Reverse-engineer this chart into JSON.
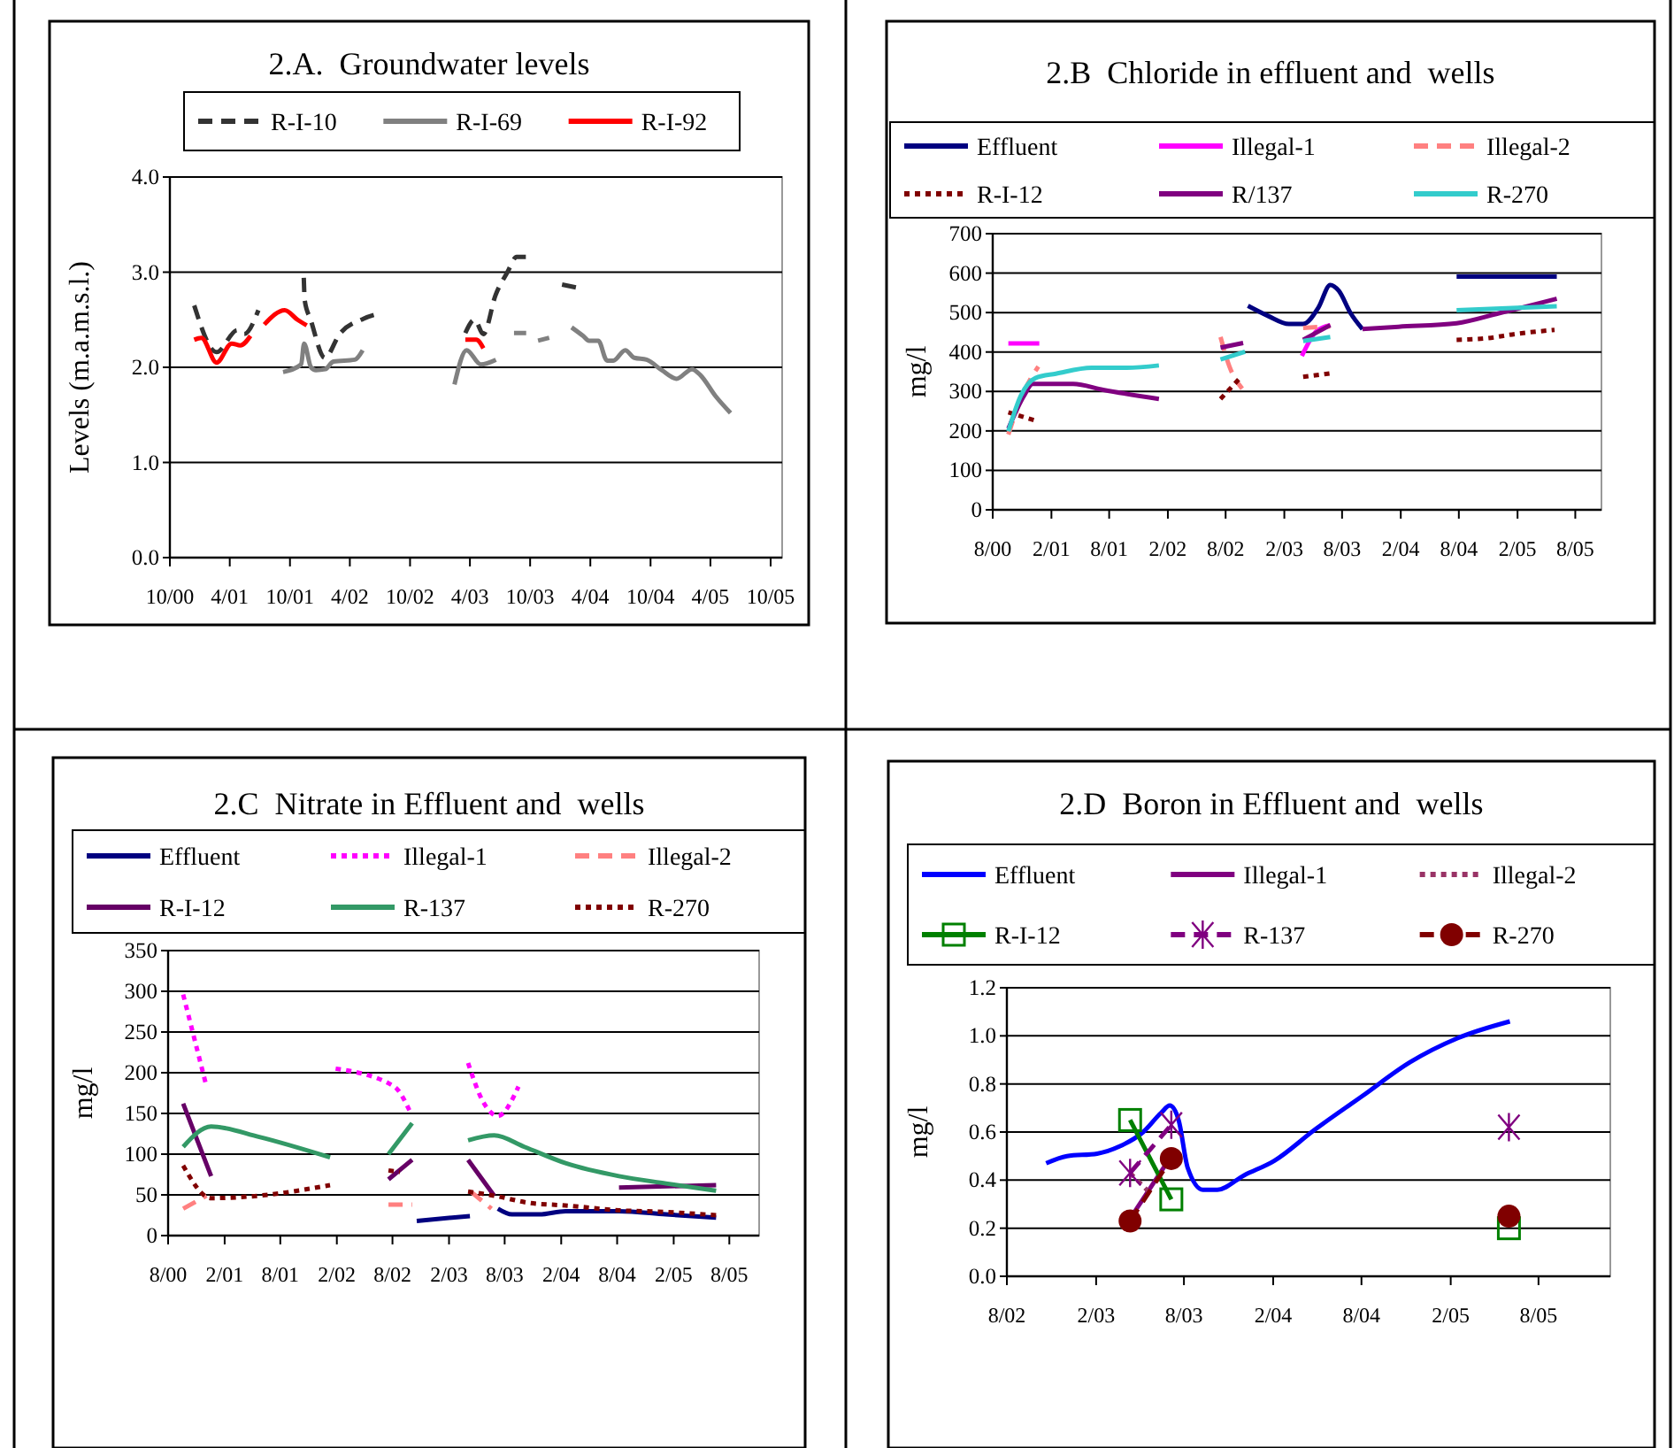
{
  "chart_data": [
    {
      "type": "line",
      "title": "2.A.  Groundwater levels",
      "ylabel": "Levels (m.a.m.s.l.)",
      "legend": "top",
      "grid": "y",
      "xlim": [
        "2000-10",
        "2005-11-05"
      ],
      "xticks": [
        {
          "value": "2000-10",
          "label": "10/00"
        },
        {
          "value": "2001-04",
          "label": "4/01"
        },
        {
          "value": "2001-10",
          "label": "10/01"
        },
        {
          "value": "2002-04",
          "label": "4/02"
        },
        {
          "value": "2002-10",
          "label": "10/02"
        },
        {
          "value": "2003-04",
          "label": "4/03"
        },
        {
          "value": "2003-10",
          "label": "10/03"
        },
        {
          "value": "2004-04",
          "label": "4/04"
        },
        {
          "value": "2004-10",
          "label": "10/04"
        },
        {
          "value": "2005-04",
          "label": "4/05"
        },
        {
          "value": "2005-10",
          "label": "10/05"
        }
      ],
      "ylim": [
        0,
        4
      ],
      "yticks": [
        {
          "value": 0,
          "label": "0.0"
        },
        {
          "value": 1,
          "label": "1.0"
        },
        {
          "value": 2,
          "label": "2.0"
        },
        {
          "value": 3,
          "label": "3.0"
        },
        {
          "value": 4,
          "label": "4.0"
        }
      ],
      "series": [
        {
          "name": "R-I-10",
          "color": "#333333",
          "line_style": "dashed",
          "x": [
            "2000-12-14",
            "2001-02-20",
            "2001-04-24",
            "2001-05-15",
            "2001-06-27",
            "2001-08-01",
            "2001-11-12",
            "2001-11-15",
            "2001-12-03",
            "2002-01-15",
            "2002-03-01",
            "2002-05-12",
            "2002-07-06",
            "2002-10-01",
            "2003-03-18",
            "2003-04-15",
            "2003-05-12",
            "2003-06-18",
            "2003-07-24",
            "2003-08-21",
            "2003-09-18",
            "2003-11-01",
            "2004-01-06",
            "2004-03-01"
          ],
          "values": [
            2.65,
            2.16,
            2.39,
            2.35,
            2.6,
            null,
            2.94,
            2.7,
            2.5,
            2.1,
            2.35,
            2.51,
            2.57,
            null,
            2.36,
            2.5,
            2.35,
            2.76,
            3.0,
            3.16,
            3.16,
            null,
            2.87,
            2.83
          ]
        },
        {
          "name": "R-I-69",
          "color": "#808080",
          "line_style": "solid",
          "x": [
            "2001-09-10",
            "2001-11-04",
            "2001-11-13",
            "2001-12-04",
            "2001-12-19",
            "2002-01-16",
            "2002-02-10",
            "2002-04-16",
            "2002-05-10",
            "2002-10-01",
            "2003-02-13",
            "2003-03-22",
            "2003-05-04",
            "2003-06-19",
            "2003-07-15",
            "2003-08-13",
            "2003-09-19",
            "2003-10-10",
            "2003-10-25",
            "2003-11-28",
            "2004-01-01",
            "2004-02-04",
            "2004-03-10",
            "2004-03-28",
            "2004-04-25",
            "2004-05-22",
            "2004-06-10",
            "2004-07-16",
            "2004-08-13",
            "2004-09-19",
            "2004-11-04",
            "2004-12-19",
            "2005-02-04",
            "2005-03-01",
            "2005-04-16",
            "2005-06-01"
          ],
          "values": [
            1.95,
            2.03,
            2.25,
            2.0,
            1.97,
            1.98,
            2.06,
            2.08,
            2.18,
            null,
            1.82,
            2.18,
            2.03,
            2.08,
            null,
            2.36,
            2.36,
            null,
            2.28,
            2.31,
            null,
            2.42,
            2.33,
            2.28,
            2.28,
            2.07,
            2.07,
            2.18,
            2.1,
            2.08,
            1.97,
            1.88,
            1.98,
            1.92,
            1.7,
            1.52
          ]
        },
        {
          "name": "R-I-92",
          "color": "#ff0000",
          "line_style": "solid",
          "x": [
            "2000-12-14",
            "2001-01-05",
            "2001-02-20",
            "2001-04-07",
            "2001-05-03",
            "2001-06-03",
            "2001-06-20",
            "2001-07-15",
            "2001-09-15",
            "2001-10-24",
            "2001-11-21",
            "2002-06-01",
            "2003-03-18",
            "2003-04-20",
            "2003-05-12"
          ],
          "values": [
            2.29,
            2.31,
            2.05,
            2.25,
            2.23,
            2.33,
            null,
            2.45,
            2.6,
            2.5,
            2.44,
            null,
            2.29,
            2.29,
            2.2
          ]
        }
      ]
    },
    {
      "type": "line",
      "title": "2.B  Chloride in effluent and  wells",
      "ylabel": "mg/l",
      "legend": "top",
      "grid": "y",
      "xlim": [
        "2000-08",
        "2005-10-22"
      ],
      "xticks": [
        {
          "value": "2000-08",
          "label": "8/00"
        },
        {
          "value": "2001-02",
          "label": "2/01"
        },
        {
          "value": "2001-08",
          "label": "8/01"
        },
        {
          "value": "2002-02",
          "label": "2/02"
        },
        {
          "value": "2002-08",
          "label": "8/02"
        },
        {
          "value": "2003-02",
          "label": "2/03"
        },
        {
          "value": "2003-08",
          "label": "8/03"
        },
        {
          "value": "2004-02",
          "label": "2/04"
        },
        {
          "value": "2004-08",
          "label": "8/04"
        },
        {
          "value": "2005-02",
          "label": "2/05"
        },
        {
          "value": "2005-08",
          "label": "8/05"
        }
      ],
      "ylim": [
        0,
        700
      ],
      "yticks": [
        0,
        100,
        200,
        300,
        400,
        500,
        600,
        700
      ],
      "series": [
        {
          "name": "Effluent",
          "color": "#000080",
          "line_style": "solid",
          "x": [
            "2002-10-10",
            "2002-12-13",
            "2003-02-15",
            "2003-04-01",
            "2003-05-19",
            "2003-06-25",
            "2003-07-22",
            "2003-08-28",
            "2003-10-04",
            "2004-03-01",
            "2004-07-25",
            "2005-06-04"
          ],
          "values": [
            517,
            491,
            471,
            471,
            513,
            570,
            555,
            498,
            458,
            null,
            591,
            591
          ]
        },
        {
          "name": "Illegal-1",
          "color": "#ff00ff",
          "line_style": "solid",
          "x": [
            "2000-09-19",
            "2000-12-25",
            "2002-01-01",
            "2003-03-28",
            "2003-05-13",
            "2003-06-25"
          ],
          "values": [
            422,
            422,
            null,
            390,
            453,
            468
          ]
        },
        {
          "name": "Illegal-2",
          "color": "#ff8080",
          "line_style": "dashed",
          "x": [
            "2000-09-19",
            "2000-11-01",
            "2000-12-22",
            "2002-01-01",
            "2002-07-16",
            "2002-08-13",
            "2002-09-22",
            "2003-01-01",
            "2003-04-01",
            "2003-06-25"
          ],
          "values": [
            191,
            289,
            363,
            null,
            438,
            363,
            307,
            null,
            461,
            465
          ]
        },
        {
          "name": "R-I-12",
          "color": "#800000",
          "line_style": "dotted",
          "x": [
            "2000-09-19",
            "2000-12-22",
            "2002-01-01",
            "2002-07-16",
            "2002-09-15",
            "2003-01-01",
            "2003-04-01",
            "2003-06-25",
            "2004-01-01",
            "2004-07-25",
            "2004-10-28",
            "2005-01-28",
            "2005-05-28"
          ],
          "values": [
            247,
            224,
            null,
            281,
            334,
            null,
            337,
            346,
            null,
            431,
            435,
            446,
            456
          ]
        },
        {
          "name": "R/137",
          "color": "#800080",
          "line_style": "solid",
          "x": [
            "2000-09-19",
            "2000-11-07",
            "2000-12-04",
            "2001-04-10",
            "2001-07-13",
            "2002-01-04",
            "2002-04-01",
            "2002-07-16",
            "2002-09-25",
            "2003-01-01",
            "2003-04-01",
            "2003-06-25",
            "2003-08-01",
            "2003-10-04",
            "2004-01-25",
            "2004-07-25",
            "2004-12-04",
            "2005-06-04"
          ],
          "values": [
            206,
            289,
            319,
            319,
            304,
            281,
            null,
            411,
            423,
            null,
            431,
            468,
            null,
            458,
            464,
            473,
            498,
            535
          ]
        },
        {
          "name": "R-270",
          "color": "#33cccc",
          "line_style": "solid",
          "x": [
            "2000-09-19",
            "2000-10-28",
            "2000-12-13",
            "2001-02-15",
            "2001-06-07",
            "2001-09-25",
            "2002-01-04",
            "2002-04-01",
            "2002-07-16",
            "2002-10-01",
            "2003-01-01",
            "2003-04-01",
            "2003-06-25",
            "2004-01-01",
            "2004-07-25",
            "2005-06-04"
          ],
          "values": [
            199,
            289,
            334,
            345,
            360,
            360,
            366,
            null,
            381,
            401,
            null,
            428,
            438,
            null,
            506,
            516
          ]
        }
      ]
    },
    {
      "type": "line",
      "title": "2.C  Nitrate in Effluent and  wells",
      "ylabel": "mg/l",
      "legend": "top",
      "grid": "y",
      "xlim": [
        "2000-08",
        "2005-11-06"
      ],
      "xticks": [
        {
          "value": "2000-08",
          "label": "8/00"
        },
        {
          "value": "2001-02",
          "label": "2/01"
        },
        {
          "value": "2001-08",
          "label": "8/01"
        },
        {
          "value": "2002-02",
          "label": "2/02"
        },
        {
          "value": "2002-08",
          "label": "8/02"
        },
        {
          "value": "2003-02",
          "label": "2/03"
        },
        {
          "value": "2003-08",
          "label": "8/03"
        },
        {
          "value": "2004-02",
          "label": "2/04"
        },
        {
          "value": "2004-08",
          "label": "8/04"
        },
        {
          "value": "2005-02",
          "label": "2/05"
        },
        {
          "value": "2005-08",
          "label": "8/05"
        }
      ],
      "ylim": [
        0,
        350
      ],
      "yticks": [
        0,
        50,
        100,
        150,
        200,
        250,
        300,
        350
      ],
      "series": [
        {
          "name": "Effluent",
          "color": "#000080",
          "line_style": "solid",
          "x": [
            "2002-10-19",
            "2003-04-10",
            "2003-05-20",
            "2003-07-10",
            "2003-08-25",
            "2003-11-22",
            "2004-02-15",
            "2004-08-07",
            "2005-01-07",
            "2005-06-19"
          ],
          "values": [
            18,
            24,
            null,
            33,
            26,
            26,
            30,
            30,
            26,
            22
          ]
        },
        {
          "name": "Illegal-1",
          "color": "#ff00ff",
          "line_style": "dotted",
          "x": [
            "2000-09-19",
            "2000-12-04",
            "2001-06-01",
            "2002-01-28",
            "2002-08-07",
            "2002-09-25",
            "2003-01-01",
            "2003-04-04",
            "2003-05-22",
            "2003-07-10",
            "2003-09-15"
          ],
          "values": [
            296,
            183,
            null,
            205,
            183,
            154,
            null,
            212,
            165,
            147,
            183
          ]
        },
        {
          "name": "Illegal-2",
          "color": "#ff8080",
          "line_style": "dashed",
          "x": [
            "2000-09-19",
            "2000-12-04",
            "2002-01-01",
            "2002-07-19",
            "2002-10-04",
            "2003-01-01",
            "2003-04-13",
            "2003-06-19"
          ],
          "values": [
            33,
            49,
            null,
            38,
            38,
            null,
            54,
            33
          ]
        },
        {
          "name": "R-I-12",
          "color": "#660066",
          "line_style": "solid",
          "x": [
            "2000-09-19",
            "2000-12-19",
            "2002-01-01",
            "2002-07-19",
            "2002-10-04",
            "2003-01-01",
            "2003-04-04",
            "2003-06-28",
            "2004-01-01",
            "2004-08-07",
            "2005-06-19"
          ],
          "values": [
            162,
            73,
            null,
            69,
            93,
            null,
            93,
            49,
            null,
            59,
            62
          ]
        },
        {
          "name": "R-137",
          "color": "#339966",
          "line_style": "solid",
          "x": [
            "2000-09-19",
            "2000-12-19",
            "2001-05-25",
            "2002-01-10",
            "2002-04-01",
            "2002-07-19",
            "2002-10-04",
            "2003-01-01",
            "2003-04-04",
            "2003-06-28",
            "2003-10-04",
            "2004-02-15",
            "2004-08-07",
            "2005-01-07",
            "2005-06-19"
          ],
          "values": [
            109,
            134,
            121,
            96,
            null,
            100,
            138,
            null,
            117,
            123,
            109,
            89,
            73,
            64,
            55
          ]
        },
        {
          "name": "R-270",
          "color": "#800000",
          "line_style": "dotted",
          "x": [
            "2000-09-19",
            "2000-12-19",
            "2001-05-25",
            "2002-01-10",
            "2002-04-01",
            "2002-07-19",
            "2002-08-25",
            "2003-01-01",
            "2003-04-04",
            "2003-06-28",
            "2003-10-22",
            "2004-02-15",
            "2004-08-07",
            "2005-01-07",
            "2005-06-19"
          ],
          "values": [
            86,
            46,
            49,
            62,
            null,
            80,
            78,
            null,
            54,
            49,
            40,
            37,
            31,
            29,
            25
          ]
        }
      ]
    },
    {
      "type": "line",
      "title": "2.D  Boron in Effluent and  wells",
      "ylabel": "mg/l",
      "legend": "top",
      "grid": "y",
      "xlim": [
        "2002-08",
        "2005-12-27"
      ],
      "xticks": [
        {
          "value": "2002-08",
          "label": "8/02"
        },
        {
          "value": "2003-02",
          "label": "2/03"
        },
        {
          "value": "2003-08",
          "label": "8/03"
        },
        {
          "value": "2004-02",
          "label": "2/04"
        },
        {
          "value": "2004-08",
          "label": "8/04"
        },
        {
          "value": "2005-02",
          "label": "2/05"
        },
        {
          "value": "2005-08",
          "label": "8/05"
        }
      ],
      "ylim": [
        0,
        1.2
      ],
      "yticks": [
        {
          "value": 0,
          "label": "0.0"
        },
        {
          "value": 0.2,
          "label": "0.2"
        },
        {
          "value": 0.4,
          "label": "0.4"
        },
        {
          "value": 0.6,
          "label": "0.6"
        },
        {
          "value": 0.8,
          "label": "0.8"
        },
        {
          "value": 1,
          "label": "1.0"
        },
        {
          "value": 1.2,
          "label": "1.2"
        }
      ],
      "series": [
        {
          "name": "Effluent",
          "color": "#0000ff",
          "line_style": "solid",
          "marker": "none",
          "x": [
            "2002-10-21",
            "2002-12-03",
            "2003-02-03",
            "2003-03-21",
            "2003-05-09",
            "2003-06-15",
            "2003-07-03",
            "2003-07-21",
            "2003-08-09",
            "2003-09-09",
            "2003-10-09",
            "2003-12-03",
            "2004-02-03",
            "2004-04-27",
            "2004-08-03",
            "2004-11-09",
            "2005-02-15",
            "2005-06-03"
          ],
          "values": [
            0.47,
            0.5,
            0.51,
            0.54,
            0.6,
            0.68,
            0.71,
            0.65,
            0.45,
            0.36,
            0.36,
            0.42,
            0.48,
            0.61,
            0.75,
            0.89,
            0.99,
            1.06
          ]
        },
        {
          "name": "Illegal-1",
          "color": "#800080",
          "line_style": "solid",
          "marker": "none",
          "x": [
            "2003-04-12",
            "2003-07-06"
          ],
          "values": [
            0.24,
            0.5
          ]
        },
        {
          "name": "Illegal-2",
          "color": "#993366",
          "line_style": "dotted",
          "marker": "none",
          "x": [
            "2003-04-12",
            "2003-05-21"
          ],
          "values": [
            0.43,
            0.35
          ]
        },
        {
          "name": "R-I-12",
          "color": "#008000",
          "line_style": "solid",
          "marker": "square",
          "x": [
            "2003-04-12",
            "2003-07-06",
            "2004-06-01",
            "2005-06-01"
          ],
          "values": [
            0.65,
            0.32,
            null,
            0.2
          ]
        },
        {
          "name": "R-137",
          "color": "#800080",
          "line_style": "dashed",
          "marker": "cross",
          "x": [
            "2003-04-12",
            "2003-07-06",
            "2004-06-01",
            "2005-06-01"
          ],
          "values": [
            0.43,
            0.63,
            null,
            0.62
          ]
        },
        {
          "name": "R-270",
          "color": "#800000",
          "line_style": "dashed",
          "marker": "circle",
          "x": [
            "2003-04-12",
            "2003-07-06",
            "2004-06-01",
            "2005-06-01"
          ],
          "values": [
            0.23,
            0.49,
            null,
            0.25
          ]
        }
      ]
    }
  ]
}
